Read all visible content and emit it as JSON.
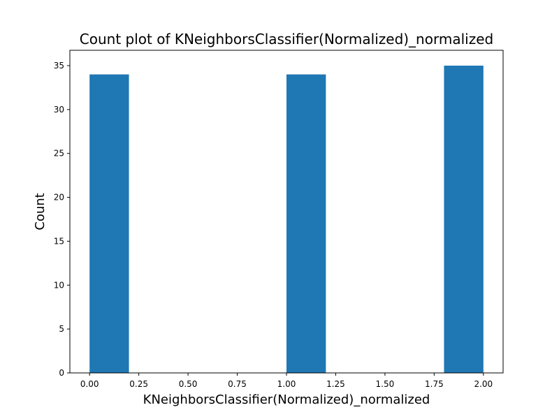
{
  "chart_data": {
    "type": "bar",
    "title": "Count plot of KNeighborsClassifier(Normalized)_normalized",
    "xlabel": "KNeighborsClassifier(Normalized)_normalized",
    "ylabel": "Count",
    "bins": [
      {
        "start": 0.0,
        "end": 0.2,
        "value": 34
      },
      {
        "start": 1.0,
        "end": 1.2,
        "value": 34
      },
      {
        "start": 1.8,
        "end": 2.0,
        "value": 35
      }
    ],
    "xlim": [
      -0.1,
      2.1
    ],
    "ylim": [
      0,
      36.75
    ],
    "xticks": [
      "0.00",
      "0.25",
      "0.50",
      "0.75",
      "1.00",
      "1.25",
      "1.50",
      "1.75",
      "2.00"
    ],
    "yticks": [
      "0",
      "5",
      "10",
      "15",
      "20",
      "25",
      "30",
      "35"
    ],
    "bar_color": "#1f77b4",
    "grid": false,
    "legend": false
  }
}
